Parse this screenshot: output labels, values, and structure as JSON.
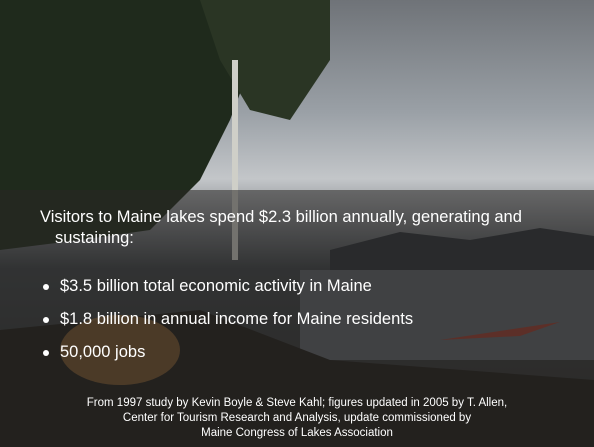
{
  "intro": "Visitors to Maine lakes spend $2.3 billion annually, generating and sustaining:",
  "bullets": [
    "$3.5 billion total economic activity in Maine",
    "$1.8 billion in annual income for Maine residents",
    "50,000 jobs"
  ],
  "source": [
    "From 1997 study by Kevin Boyle & Steve Kahl; figures updated in 2005 by  T. Allen,",
    "Center for Tourism Research and Analysis, update commissioned by",
    "Maine Congress of Lakes Association"
  ]
}
